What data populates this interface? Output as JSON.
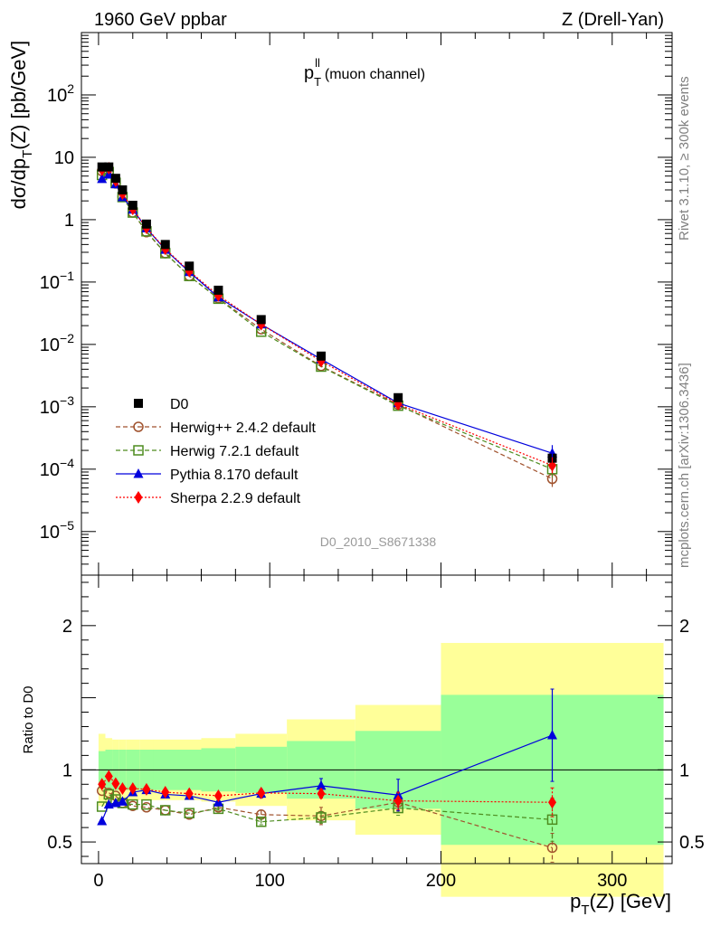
{
  "header": {
    "left": "1960 GeV ppbar",
    "right": "Z (Drell-Yan)"
  },
  "sidebar": {
    "rivet": "Rivet 3.1.10, ≥ 300k events",
    "source": "mcplots.cern.ch [arXiv:1306.3436]"
  },
  "chart_data": {
    "type": "scatter",
    "title": "p_T^ll (muon channel)",
    "title_main": "p",
    "title_sub": "T",
    "title_sup": "ll",
    "title_rest": "(muon channel)",
    "analysis_label": "D0_2010_S8671338",
    "xlabel": "p_T(Z) [GeV]",
    "xlabel_main": "p",
    "xlabel_sub": "T",
    "xlabel_rest": "(Z) [GeV]",
    "ylabel": "dσ/dp_T(Z) [pb/GeV]",
    "ylabel_a": "dσ/dp",
    "ylabel_sub": "T",
    "ylabel_b": "(Z) [pb/GeV]",
    "ratio_ylabel": "Ratio to D0",
    "xlim": [
      -10,
      335
    ],
    "ylim_main": [
      2e-06,
      1000
    ],
    "yscale_main": "log",
    "ylim_ratio": [
      0.35,
      2.35
    ],
    "x_ticks": [
      0,
      100,
      200,
      300
    ],
    "main_y_ticks": [
      {
        "v": 1e-05,
        "m": "10",
        "e": "−5"
      },
      {
        "v": 0.0001,
        "m": "10",
        "e": "−4"
      },
      {
        "v": 0.001,
        "m": "10",
        "e": "−3"
      },
      {
        "v": 0.01,
        "m": "10",
        "e": "−2"
      },
      {
        "v": 0.1,
        "m": "10",
        "e": "−1"
      },
      {
        "v": 1,
        "m": "1",
        "e": ""
      },
      {
        "v": 10,
        "m": "10",
        "e": ""
      },
      {
        "v": 100,
        "m": "10",
        "e": "2"
      }
    ],
    "ratio_y_ticks": [
      {
        "v": 0.5,
        "l": "0.5"
      },
      {
        "v": 1,
        "l": "1"
      },
      {
        "v": 2,
        "l": "2"
      }
    ],
    "x": [
      2,
      6,
      10,
      14,
      20,
      28,
      39,
      53,
      70,
      95,
      130,
      175,
      265
    ],
    "bin_edges": [
      0,
      4,
      8,
      12,
      16,
      24,
      32,
      46,
      60,
      80,
      110,
      150,
      200,
      330
    ],
    "ratio_band_inner": [
      0.13,
      0.14,
      0.14,
      0.14,
      0.14,
      0.14,
      0.14,
      0.14,
      0.15,
      0.16,
      0.2,
      0.27,
      0.52
    ],
    "ratio_band_outer": [
      0.25,
      0.22,
      0.21,
      0.21,
      0.21,
      0.21,
      0.21,
      0.21,
      0.22,
      0.25,
      0.35,
      0.45,
      0.88
    ],
    "legend_position": "lower-left",
    "series": [
      {
        "name": "D0",
        "color": "#000000",
        "marker": "square-filled",
        "line": "none",
        "values": [
          7.0,
          7.0,
          4.6,
          3.0,
          1.7,
          0.85,
          0.4,
          0.18,
          0.074,
          0.025,
          0.0065,
          0.0014,
          0.00015
        ],
        "ratio": [
          1,
          1,
          1,
          1,
          1,
          1,
          1,
          1,
          1,
          1,
          1,
          1,
          1
        ]
      },
      {
        "name": "Herwig++ 2.4.2 default",
        "color": "#a0522d",
        "marker": "circle-open",
        "line": "dashed",
        "values": [
          6.0,
          5.9,
          3.8,
          2.35,
          1.3,
          0.63,
          0.29,
          0.125,
          0.055,
          0.0175,
          0.0045,
          0.00108,
          7e-05
        ],
        "ratio": [
          0.855,
          0.84,
          0.82,
          0.77,
          0.75,
          0.74,
          0.72,
          0.69,
          0.74,
          0.69,
          0.68,
          0.775,
          0.46
        ],
        "ratio_err": [
          0,
          0,
          0,
          0,
          0,
          0,
          0,
          0,
          0.01,
          0.03,
          0.06,
          0.06,
          0.1
        ]
      },
      {
        "name": "Herwig 7.2.1 default",
        "color": "#4d8c1f",
        "marker": "square-open",
        "line": "dashed",
        "values": [
          5.2,
          5.8,
          3.9,
          2.3,
          1.3,
          0.65,
          0.29,
          0.125,
          0.054,
          0.016,
          0.0044,
          0.00104,
          0.0001
        ],
        "ratio": [
          0.745,
          0.83,
          0.795,
          0.77,
          0.76,
          0.76,
          0.72,
          0.7,
          0.73,
          0.64,
          0.67,
          0.735,
          0.655
        ],
        "ratio_err": [
          0,
          0,
          0,
          0,
          0,
          0,
          0,
          0,
          0.01,
          0.02,
          0.04,
          0.05,
          0.15
        ]
      },
      {
        "name": "Pythia 8.170 default",
        "color": "#0000dd",
        "marker": "triangle-filled",
        "line": "solid",
        "values": [
          4.5,
          5.3,
          3.7,
          2.3,
          1.45,
          0.73,
          0.33,
          0.145,
          0.057,
          0.021,
          0.0058,
          0.00115,
          0.00018
        ],
        "ratio": [
          0.645,
          0.76,
          0.77,
          0.78,
          0.845,
          0.86,
          0.83,
          0.82,
          0.775,
          0.835,
          0.89,
          0.825,
          1.24
        ],
        "ratio_err": [
          0,
          0,
          0,
          0,
          0,
          0,
          0,
          0,
          0.01,
          0.03,
          0.05,
          0.11,
          0.32
        ]
      },
      {
        "name": "Sherpa 2.2.9 default",
        "color": "#ff0000",
        "marker": "diamond-filled",
        "line": "dotted",
        "values": [
          6.3,
          6.7,
          4.2,
          2.6,
          1.48,
          0.74,
          0.34,
          0.15,
          0.061,
          0.021,
          0.0054,
          0.0011,
          0.000115
        ],
        "ratio": [
          0.9,
          0.955,
          0.905,
          0.87,
          0.87,
          0.865,
          0.845,
          0.835,
          0.82,
          0.84,
          0.835,
          0.785,
          0.775
        ],
        "ratio_err": [
          0,
          0,
          0,
          0,
          0,
          0,
          0,
          0,
          0.01,
          0.02,
          0.03,
          0.06,
          0.1
        ]
      }
    ]
  }
}
